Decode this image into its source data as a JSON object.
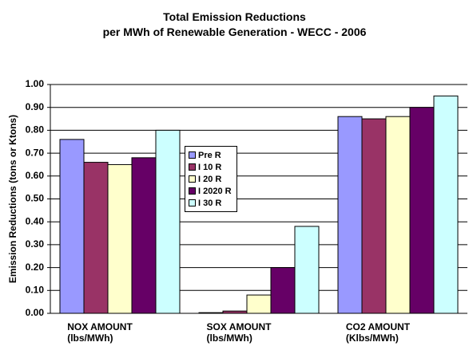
{
  "chart_data": {
    "type": "bar",
    "title": "Total Emission Reductions\nper MWh of Renewable Generation - WECC - 2006",
    "y_label": "Emission Reductions (tons or Ktons)",
    "categories": [
      "NOX AMOUNT\n(lbs/MWh)",
      "SOX AMOUNT\n(lbs/MWh)",
      "CO2 AMOUNT\n(Klbs/MWh)"
    ],
    "series": [
      {
        "name": "Pre R",
        "color": "#9999ff",
        "values": [
          0.76,
          0.003,
          0.86
        ]
      },
      {
        "name": "I 10 R",
        "color": "#993366",
        "values": [
          0.66,
          0.01,
          0.85
        ]
      },
      {
        "name": "I 20 R",
        "color": "#ffffcc",
        "values": [
          0.65,
          0.08,
          0.86
        ]
      },
      {
        "name": "I 2020 R",
        "color": "#660066",
        "values": [
          0.68,
          0.2,
          0.9
        ]
      },
      {
        "name": "I 30 R",
        "color": "#ccffff",
        "values": [
          0.8,
          0.38,
          0.95
        ]
      }
    ],
    "ylim": [
      0,
      1
    ],
    "yticks": [
      {
        "value": 0,
        "label": "0.00"
      },
      {
        "value": 0.1,
        "label": "0.10"
      },
      {
        "value": 0.2,
        "label": "0.20"
      },
      {
        "value": 0.3,
        "label": "0.30"
      },
      {
        "value": 0.4,
        "label": "0.40"
      },
      {
        "value": 0.5,
        "label": "0.50"
      },
      {
        "value": 0.6,
        "label": "0.60"
      },
      {
        "value": 0.7,
        "label": "0.70"
      },
      {
        "value": 0.8,
        "label": "0.80"
      },
      {
        "value": 0.9,
        "label": "0.90"
      },
      {
        "value": 1,
        "label": "1.00"
      }
    ],
    "grid": true,
    "legend_position": "center"
  }
}
